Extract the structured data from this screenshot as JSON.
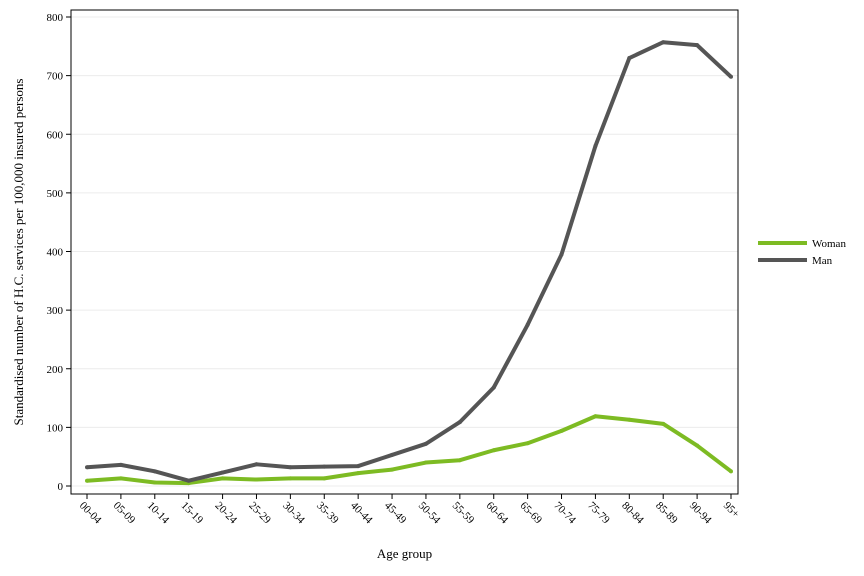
{
  "chart_data": {
    "type": "line",
    "title": "",
    "xlabel": "Age group",
    "ylabel": "Standardised number of H.C. services per 100,000 insured persons",
    "categories": [
      "00-04",
      "05-09",
      "10-14",
      "15-19",
      "20-24",
      "25-29",
      "30-34",
      "35-39",
      "40-44",
      "45-49",
      "50-54",
      "55-59",
      "60-64",
      "65-69",
      "70-74",
      "75-79",
      "80-84",
      "85-89",
      "90-94",
      "95+"
    ],
    "ylim": [
      0,
      800
    ],
    "yticks": [
      0,
      100,
      200,
      300,
      400,
      500,
      600,
      700,
      800
    ],
    "grid": true,
    "legend_position": "right",
    "series": [
      {
        "name": "Woman",
        "color": "#7dbb23",
        "values": [
          9,
          13,
          6,
          5,
          13,
          11,
          13,
          13,
          22,
          28,
          40,
          44,
          61,
          73,
          94,
          119,
          113,
          106,
          69,
          25
        ]
      },
      {
        "name": "Man",
        "color": "#555555",
        "values": [
          32,
          36,
          25,
          9,
          23,
          37,
          32,
          33,
          34,
          53,
          72,
          109,
          168,
          275,
          395,
          580,
          730,
          757,
          752,
          698
        ]
      }
    ]
  }
}
